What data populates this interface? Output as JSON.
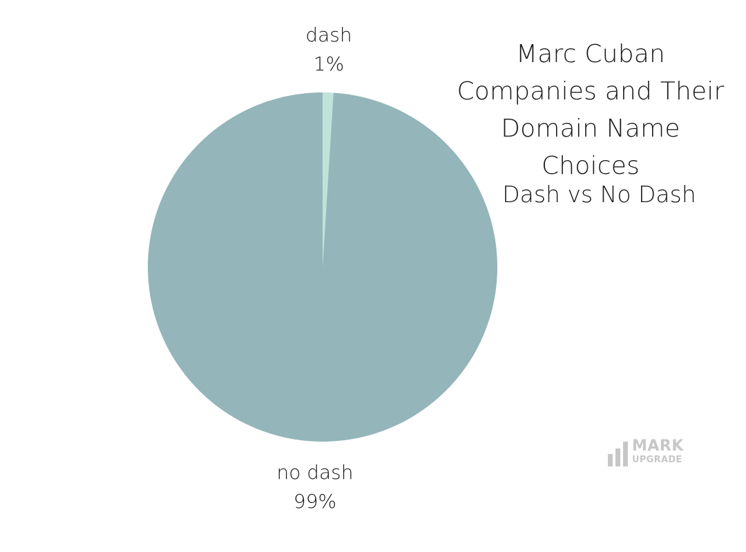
{
  "chart_data": {
    "type": "pie",
    "title": "Marc Cuban Companies and Their Domain Name Choices",
    "subtitle": "Dash vs No Dash",
    "slices": [
      {
        "label": "dash",
        "value": 1,
        "value_label": "1%",
        "color": "#bfe3d9"
      },
      {
        "label": "no dash",
        "value": 99,
        "value_label": "99%",
        "color": "#94b5b9"
      }
    ],
    "start_angle": "top (12 o'clock)",
    "direction": "clockwise"
  },
  "logo": {
    "line1": "MARK",
    "line2": "UPGRADE"
  },
  "colors": {
    "background": "#ffffff",
    "logo_gray": "#c7c7c7"
  }
}
